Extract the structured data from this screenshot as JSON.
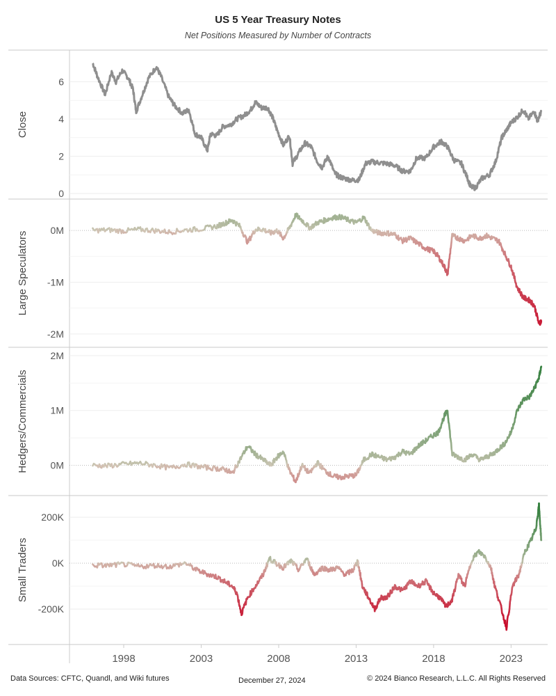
{
  "title": "US 5 Year Treasury Notes",
  "subtitle": "Net Positions Measured by Number of Contracts",
  "footer": {
    "sources": "Data Sources: CFTC, Quandl, and Wiki futures",
    "date": "December 27, 2024",
    "copyright": "© 2024 Bianco Research, L.L.C. All Rights Reserved"
  },
  "colors": {
    "close_line": "#8f8f8f",
    "neutral": "#d2c8b8",
    "positive": "#2e7d3a",
    "negative": "#c8102e",
    "grid": "#eeeeee",
    "zero_line": "#bbbbbb",
    "panel_border": "#c8c8c8"
  },
  "chart_data": [
    {
      "type": "line",
      "ylabel": "Close",
      "x_unit": "year",
      "xlim": [
        1994.5,
        2025.9
      ],
      "ylim": [
        0,
        7.4
      ],
      "yticks": [
        0,
        2,
        4,
        6
      ],
      "yticklabels": [
        "0",
        "2",
        "4",
        "6"
      ],
      "color_mode": "solid",
      "series": [
        {
          "x": [
            1996.0,
            1996.3,
            1996.8,
            1997.2,
            1997.5,
            1997.9,
            1998.3,
            1998.6,
            1998.8,
            1999.2,
            1999.6,
            2000.1,
            2000.4,
            2000.9,
            2001.3,
            2001.8,
            2002.2,
            2002.6,
            2003.0,
            2003.4,
            2003.6,
            2004.0,
            2004.4,
            2004.9,
            2005.3,
            2005.8,
            2006.2,
            2006.5,
            2006.9,
            2007.3,
            2007.6,
            2007.9,
            2008.3,
            2008.7,
            2008.9,
            2009.3,
            2009.7,
            2010.1,
            2010.5,
            2010.8,
            2011.2,
            2011.6,
            2011.9,
            2012.3,
            2012.8,
            2013.2,
            2013.6,
            2014.0,
            2014.5,
            2015.0,
            2015.5,
            2016.0,
            2016.5,
            2016.9,
            2017.5,
            2018.0,
            2018.5,
            2018.9,
            2019.3,
            2019.8,
            2020.2,
            2020.4,
            2020.7,
            2021.1,
            2021.6,
            2022.0,
            2022.4,
            2022.7,
            2023.0,
            2023.4,
            2023.8,
            2024.1,
            2024.5,
            2024.7,
            2024.95
          ],
          "values": [
            7.0,
            6.3,
            5.3,
            6.5,
            6.0,
            6.6,
            6.2,
            5.6,
            4.4,
            5.3,
            6.2,
            6.8,
            6.3,
            5.2,
            4.7,
            4.3,
            4.5,
            3.2,
            3.0,
            2.3,
            3.2,
            3.1,
            3.6,
            3.7,
            4.0,
            4.2,
            4.5,
            4.9,
            4.6,
            4.6,
            4.1,
            3.4,
            2.6,
            3.1,
            1.6,
            2.2,
            2.7,
            2.5,
            1.7,
            1.4,
            2.0,
            1.1,
            0.9,
            0.8,
            0.7,
            0.75,
            1.6,
            1.7,
            1.65,
            1.6,
            1.5,
            1.2,
            1.2,
            1.9,
            1.9,
            2.5,
            2.8,
            2.5,
            1.8,
            1.6,
            0.8,
            0.35,
            0.3,
            0.8,
            1.0,
            1.7,
            3.0,
            3.4,
            3.8,
            4.1,
            4.5,
            4.0,
            4.4,
            3.9,
            4.4
          ]
        }
      ]
    },
    {
      "type": "line",
      "ylabel": "Large Speculators",
      "x_unit": "year",
      "xlim": [
        1994.5,
        2025.9
      ],
      "ylim": [
        -2150000,
        500000
      ],
      "yticks": [
        0,
        -1000000,
        -2000000
      ],
      "yticklabels": [
        "0M",
        "-1M",
        "-2M"
      ],
      "color_mode": "diverging",
      "color_scale_max": 2000000,
      "series": [
        {
          "x": [
            1996.0,
            1997.0,
            1998.0,
            1999.0,
            2000.0,
            2001.0,
            2002.0,
            2003.0,
            2004.0,
            2004.6,
            2005.0,
            2005.5,
            2006.0,
            2006.5,
            2007.0,
            2007.5,
            2007.9,
            2008.3,
            2008.7,
            2009.1,
            2009.5,
            2010.0,
            2010.5,
            2011.0,
            2011.5,
            2012.0,
            2012.5,
            2013.0,
            2013.5,
            2014.0,
            2014.5,
            2015.0,
            2015.5,
            2016.0,
            2016.5,
            2017.0,
            2017.5,
            2018.0,
            2018.3,
            2018.7,
            2018.9,
            2019.2,
            2019.6,
            2020.0,
            2020.5,
            2021.0,
            2021.4,
            2021.8,
            2022.2,
            2022.6,
            2023.0,
            2023.4,
            2023.8,
            2024.2,
            2024.5,
            2024.8,
            2024.95
          ],
          "values": [
            0,
            10000,
            -10000,
            20000,
            0,
            -30000,
            10000,
            30000,
            80000,
            150000,
            200000,
            80000,
            -230000,
            20000,
            20000,
            -50000,
            0,
            -150000,
            50000,
            300000,
            200000,
            50000,
            150000,
            200000,
            250000,
            260000,
            200000,
            150000,
            250000,
            0,
            -50000,
            -50000,
            -80000,
            -200000,
            -150000,
            -250000,
            -350000,
            -400000,
            -500000,
            -700000,
            -850000,
            -100000,
            -150000,
            -200000,
            -100000,
            -150000,
            -100000,
            -150000,
            -200000,
            -450000,
            -700000,
            -1100000,
            -1300000,
            -1350000,
            -1450000,
            -1800000,
            -1750000
          ]
        }
      ]
    },
    {
      "type": "line",
      "ylabel": "Hedgers/Commercials",
      "x_unit": "year",
      "xlim": [
        1994.5,
        2025.9
      ],
      "ylim": [
        -450000,
        2050000
      ],
      "yticks": [
        0,
        1000000,
        2000000
      ],
      "yticklabels": [
        "0M",
        "1M",
        "2M"
      ],
      "color_mode": "diverging",
      "color_scale_max": 2000000,
      "series": [
        {
          "x": [
            1996.0,
            1997.0,
            1998.0,
            1999.0,
            2000.0,
            2001.0,
            2002.0,
            2003.0,
            2004.0,
            2004.6,
            2005.0,
            2005.5,
            2006.0,
            2006.5,
            2007.0,
            2007.5,
            2007.9,
            2008.3,
            2008.7,
            2009.1,
            2009.5,
            2010.0,
            2010.5,
            2011.0,
            2011.5,
            2012.0,
            2012.5,
            2013.0,
            2013.5,
            2014.0,
            2014.5,
            2015.0,
            2015.5,
            2016.0,
            2016.5,
            2017.0,
            2017.5,
            2018.0,
            2018.3,
            2018.7,
            2018.9,
            2019.2,
            2019.6,
            2020.0,
            2020.5,
            2021.0,
            2021.4,
            2021.8,
            2022.2,
            2022.6,
            2023.0,
            2023.4,
            2023.8,
            2024.2,
            2024.5,
            2024.8,
            2024.95
          ],
          "values": [
            0,
            -10000,
            20000,
            40000,
            0,
            -50000,
            20000,
            -30000,
            -60000,
            -80000,
            -150000,
            100000,
            350000,
            200000,
            100000,
            0,
            150000,
            250000,
            -100000,
            -300000,
            0,
            -150000,
            50000,
            -100000,
            -200000,
            -220000,
            -200000,
            -180000,
            100000,
            200000,
            150000,
            100000,
            150000,
            250000,
            200000,
            350000,
            450000,
            550000,
            600000,
            900000,
            1000000,
            200000,
            150000,
            100000,
            200000,
            100000,
            150000,
            200000,
            300000,
            400000,
            600000,
            1000000,
            1200000,
            1250000,
            1400000,
            1600000,
            1800000
          ]
        }
      ]
    },
    {
      "type": "line",
      "ylabel": "Small Traders",
      "x_unit": "year",
      "xlim": [
        1994.5,
        2025.9
      ],
      "ylim": [
        -330000,
        270000
      ],
      "yticks": [
        200000,
        0,
        -200000
      ],
      "yticklabels": [
        "200K",
        "0K",
        "-200K"
      ],
      "color_mode": "diverging",
      "color_scale_max": 260000,
      "series": [
        {
          "x": [
            1996.0,
            1997.0,
            1998.0,
            1999.0,
            2000.0,
            2001.0,
            2002.0,
            2002.7,
            2003.5,
            2004.0,
            2004.5,
            2005.0,
            2005.3,
            2005.6,
            2006.0,
            2006.5,
            2007.0,
            2007.4,
            2007.8,
            2008.3,
            2008.8,
            2009.3,
            2009.8,
            2010.3,
            2010.8,
            2011.3,
            2011.8,
            2012.3,
            2012.8,
            2013.1,
            2013.4,
            2013.8,
            2014.2,
            2014.6,
            2015.0,
            2015.5,
            2016.0,
            2016.5,
            2017.0,
            2017.5,
            2018.0,
            2018.4,
            2018.8,
            2019.2,
            2019.6,
            2020.0,
            2020.5,
            2020.9,
            2021.3,
            2021.7,
            2021.95,
            2022.3,
            2022.7,
            2023.1,
            2023.5,
            2023.9,
            2024.3,
            2024.6,
            2024.8,
            2024.95
          ],
          "values": [
            -10000,
            -10000,
            -5000,
            -15000,
            -10000,
            -15000,
            0,
            -30000,
            -50000,
            -60000,
            -80000,
            -100000,
            -130000,
            -220000,
            -150000,
            -100000,
            -50000,
            20000,
            0,
            -20000,
            10000,
            -30000,
            20000,
            -50000,
            -20000,
            -30000,
            -20000,
            -50000,
            -30000,
            10000,
            -100000,
            -150000,
            -200000,
            -150000,
            -150000,
            -100000,
            -120000,
            -80000,
            -100000,
            -80000,
            -130000,
            -150000,
            -190000,
            -160000,
            -50000,
            -100000,
            20000,
            50000,
            30000,
            -20000,
            -100000,
            -180000,
            -280000,
            -100000,
            -50000,
            50000,
            100000,
            150000,
            250000,
            100000
          ]
        }
      ]
    }
  ],
  "x_axis": {
    "ticks": [
      1998,
      2003,
      2008,
      2013,
      2018,
      2023
    ],
    "ticklabels": [
      "1998",
      "2003",
      "2008",
      "2013",
      "2018",
      "2023"
    ]
  }
}
